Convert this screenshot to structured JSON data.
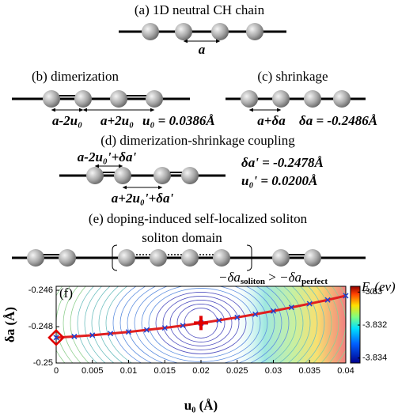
{
  "diagram": {
    "a": {
      "title": "(a) 1D neutral CH chain",
      "spacing": "a"
    },
    "b": {
      "title": "(b) dimerization",
      "short_bond": "a-2u₀",
      "long_bond": "a+2u₀",
      "value": "u₀ = 0.0386Å"
    },
    "c": {
      "title": "(c) shrinkage",
      "bond": "a+δa",
      "value": "δa = -0.2486Å"
    },
    "d": {
      "title": "(d) dimerization-shrinkage coupling",
      "short_bond": "a-2u₀'+δa'",
      "long_bond": "a+2u₀'+δa'",
      "values": [
        "δa' = -0.2478Å",
        "u₀' = 0.0200Å"
      ]
    },
    "e": {
      "title": "(e) doping-induced self-localized soliton",
      "domain": "soliton domain",
      "inequality": {
        "lhs": "−δa",
        "lhs_sub": "soliton",
        "op": " > ",
        "rhs": "−δa",
        "rhs_sub": "perfect"
      }
    }
  },
  "chart_data": {
    "type": "line",
    "panel_label": "(f)",
    "xlabel": "u₀ (Å)",
    "ylabel": "δa (Å)",
    "x": [
      0,
      0.0025,
      0.005,
      0.0075,
      0.01,
      0.0125,
      0.015,
      0.0175,
      0.02,
      0.0225,
      0.025,
      0.0275,
      0.03,
      0.0325,
      0.035,
      0.0375,
      0.04
    ],
    "series": [
      {
        "color": "#e02020",
        "marker_color": "#2040d0",
        "values": [
          -0.2486,
          -0.24854,
          -0.24847,
          -0.24838,
          -0.24829,
          -0.24818,
          -0.24807,
          -0.24794,
          -0.2478,
          -0.24765,
          -0.24749,
          -0.24732,
          -0.24714,
          -0.24694,
          -0.24674,
          -0.24653,
          -0.2463
        ]
      }
    ],
    "points": [
      {
        "x": 0,
        "y": -0.2486,
        "marker": "diamond",
        "color": "#e00000"
      },
      {
        "x": 0.02,
        "y": -0.2478,
        "marker": "plus",
        "color": "#e00000"
      }
    ],
    "xlim": [
      0,
      0.04
    ],
    "xticks": [
      0,
      0.005,
      0.01,
      0.015,
      0.02,
      0.025,
      0.03,
      0.035,
      0.04
    ],
    "ylim": [
      -0.25,
      -0.24578
    ],
    "yticks": [
      -0.25,
      -0.248,
      -0.246
    ],
    "colorbar": {
      "label": "E₀(ev)",
      "zlim": [
        -3.8343,
        -3.82965
      ],
      "zticks": [
        -3.83,
        -3.832,
        -3.834
      ]
    }
  }
}
